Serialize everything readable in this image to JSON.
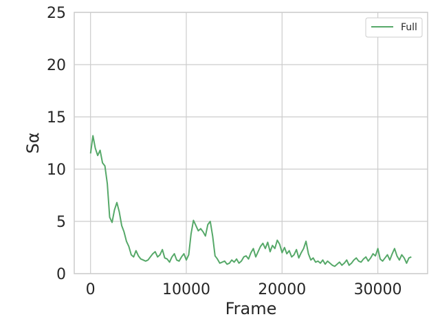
{
  "chart_data": {
    "type": "line",
    "xlabel": "Frame",
    "ylabel": "Sα",
    "xlim": [
      -1700,
      35200
    ],
    "ylim": [
      0,
      25
    ],
    "xticks": [
      0,
      10000,
      20000,
      30000
    ],
    "xtick_labels": [
      "0",
      "10000",
      "20000",
      "30000"
    ],
    "yticks": [
      0,
      5,
      10,
      15,
      20,
      25
    ],
    "ytick_labels": [
      "0",
      "5",
      "10",
      "15",
      "20",
      "25"
    ],
    "grid": true,
    "legend_position": "top-right",
    "colors": {
      "series": "#55a868",
      "grid": "#cccccc",
      "axes_edge": "#cccccc",
      "text": "#262626"
    },
    "series": [
      {
        "name": "Full",
        "x": [
          0,
          250,
          500,
          750,
          1000,
          1250,
          1500,
          1750,
          2000,
          2250,
          2500,
          2750,
          3000,
          3250,
          3500,
          3750,
          4000,
          4250,
          4500,
          4750,
          5000,
          5250,
          5500,
          5750,
          6000,
          6250,
          6500,
          6750,
          7000,
          7250,
          7500,
          7750,
          8000,
          8250,
          8500,
          8750,
          9000,
          9250,
          9500,
          9750,
          10000,
          10250,
          10500,
          10750,
          11000,
          11250,
          11500,
          11750,
          12000,
          12250,
          12500,
          12750,
          13000,
          13250,
          13500,
          13750,
          14000,
          14250,
          14500,
          14750,
          15000,
          15250,
          15500,
          15750,
          16000,
          16250,
          16500,
          16750,
          17000,
          17250,
          17500,
          17750,
          18000,
          18250,
          18500,
          18750,
          19000,
          19250,
          19500,
          19750,
          20000,
          20250,
          20500,
          20750,
          21000,
          21250,
          21500,
          21750,
          22000,
          22250,
          22500,
          22750,
          23000,
          23250,
          23500,
          23750,
          24000,
          24250,
          24500,
          24750,
          25000,
          25250,
          25500,
          25750,
          26000,
          26250,
          26500,
          26750,
          27000,
          27250,
          27500,
          27750,
          28000,
          28250,
          28500,
          28750,
          29000,
          29250,
          29500,
          29750,
          30000,
          30250,
          30500,
          30750,
          31000,
          31250,
          31500,
          31750,
          32000,
          32250,
          32500,
          32750,
          33000,
          33250,
          33500
        ],
        "values": [
          11.5,
          13.2,
          12.0,
          11.3,
          11.8,
          10.6,
          10.3,
          8.6,
          5.4,
          4.9,
          6.1,
          6.8,
          5.9,
          4.6,
          4.0,
          3.1,
          2.6,
          1.8,
          1.6,
          2.2,
          1.7,
          1.4,
          1.3,
          1.2,
          1.3,
          1.6,
          1.9,
          2.1,
          1.6,
          1.8,
          2.3,
          1.5,
          1.4,
          1.1,
          1.6,
          1.9,
          1.3,
          1.2,
          1.6,
          1.9,
          1.3,
          1.8,
          3.8,
          5.1,
          4.6,
          4.1,
          4.3,
          4.0,
          3.6,
          4.7,
          5.0,
          3.6,
          1.7,
          1.4,
          1.0,
          1.1,
          1.2,
          0.9,
          1.0,
          1.3,
          1.1,
          1.4,
          1.0,
          1.2,
          1.6,
          1.7,
          1.4,
          2.0,
          2.4,
          1.6,
          2.1,
          2.6,
          2.9,
          2.4,
          3.0,
          2.1,
          2.7,
          2.4,
          3.2,
          2.8,
          2.0,
          2.5,
          1.9,
          2.2,
          1.6,
          1.8,
          2.3,
          1.5,
          2.0,
          2.4,
          3.1,
          1.9,
          1.3,
          1.5,
          1.1,
          1.2,
          1.0,
          1.3,
          0.9,
          1.2,
          1.0,
          0.8,
          0.7,
          0.9,
          1.1,
          0.8,
          1.0,
          1.3,
          0.8,
          1.0,
          1.3,
          1.5,
          1.2,
          1.1,
          1.4,
          1.6,
          1.2,
          1.5,
          1.9,
          1.7,
          2.4,
          1.4,
          1.2,
          1.5,
          1.8,
          1.3,
          1.9,
          2.4,
          1.7,
          1.3,
          1.8,
          1.5,
          1.0,
          1.5,
          1.6
        ]
      }
    ]
  }
}
